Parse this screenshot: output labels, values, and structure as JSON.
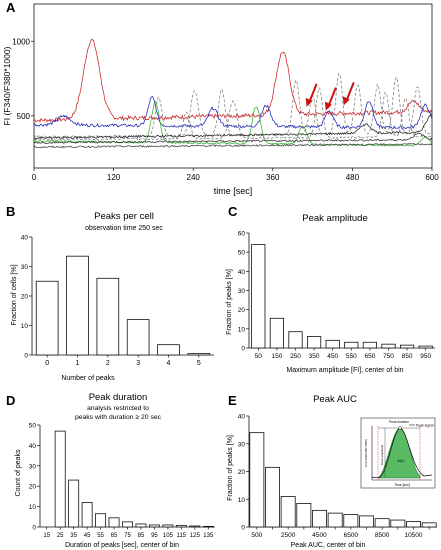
{
  "chart_data": [
    {
      "panel": "A",
      "type": "line",
      "xlabel": "time [sec]",
      "ylabel": "FI (F340/F380*1000)",
      "xlim": [
        0,
        600
      ],
      "ylim": [
        150,
        1250
      ],
      "xticks": [
        0,
        120,
        240,
        360,
        480,
        600
      ],
      "yticks": [
        500,
        1000
      ],
      "grid": false,
      "annotations": [
        {
          "type": "arrow",
          "color": "#cc1111",
          "x": 414,
          "y": 580
        },
        {
          "type": "arrow",
          "color": "#cc1111",
          "x": 443,
          "y": 555
        },
        {
          "type": "arrow",
          "color": "#cc1111",
          "x": 470,
          "y": 590
        }
      ],
      "series": [
        {
          "color": "#cc1f1f",
          "baseline": 500,
          "noise": 14,
          "drift": [
            [
              0,
              470
            ],
            [
              300,
              500
            ],
            [
              600,
              530
            ]
          ],
          "peaks": [
            [
              87,
              530,
              12
            ],
            [
              375,
              420,
              10
            ],
            [
              572,
              70,
              8
            ]
          ]
        },
        {
          "color": "#1a23b8",
          "baseline": 420,
          "noise": 10,
          "drift": [
            [
              0,
              440
            ],
            [
              600,
              420
            ]
          ],
          "peaks": [
            [
              45,
              60,
              10
            ],
            [
              178,
              190,
              6
            ],
            [
              270,
              120,
              7
            ],
            [
              350,
              140,
              7
            ],
            [
              445,
              110,
              6
            ],
            [
              505,
              180,
              6
            ],
            [
              590,
              150,
              7
            ]
          ]
        },
        {
          "color": "#33b233",
          "baseline": 330,
          "noise": 6,
          "drift": [
            [
              0,
              330
            ],
            [
              600,
              300
            ]
          ],
          "peaks": [
            [
              183,
              270,
              6
            ],
            [
              335,
              250,
              6
            ],
            [
              405,
              120,
              6
            ],
            [
              590,
              60,
              6
            ]
          ]
        },
        {
          "color": "#7a7a7a",
          "baseline": 360,
          "noise": 6,
          "dash": "3,2",
          "drift": [
            [
              0,
              360
            ],
            [
              600,
              380
            ]
          ],
          "peaks": [
            [
              188,
              260,
              5
            ],
            [
              242,
              300,
              6
            ],
            [
              283,
              310,
              5
            ],
            [
              395,
              370,
              5
            ],
            [
              420,
              260,
              5
            ],
            [
              460,
              410,
              5
            ],
            [
              488,
              330,
              5
            ],
            [
              518,
              330,
              5
            ],
            [
              546,
              380,
              5
            ],
            [
              578,
              320,
              5
            ]
          ]
        },
        {
          "color": "#7a7a7a",
          "baseline": 340,
          "noise": 6,
          "dash": "3,2",
          "drift": [
            [
              0,
              340
            ],
            [
              600,
              360
            ]
          ],
          "peaks": [
            [
              230,
              180,
              5
            ],
            [
              300,
              250,
              6
            ],
            [
              430,
              330,
              5
            ],
            [
              530,
              300,
              5
            ],
            [
              560,
              260,
              5
            ]
          ]
        },
        {
          "color": "#222222",
          "baseline": 350,
          "noise": 7,
          "drift": [
            [
              0,
              350
            ],
            [
              600,
              390
            ]
          ],
          "peaks": [
            [
              500,
              60,
              8
            ],
            [
              600,
              120,
              8
            ]
          ]
        },
        {
          "color": "#333333",
          "baseline": 315,
          "noise": 6,
          "drift": [
            [
              0,
              320
            ],
            [
              600,
              340
            ]
          ],
          "peaks": [
            [
              580,
              40,
              8
            ]
          ]
        },
        {
          "color": "#444444",
          "baseline": 290,
          "noise": 6,
          "drift": [
            [
              0,
              290
            ],
            [
              600,
              310
            ]
          ],
          "peaks": []
        }
      ]
    },
    {
      "panel": "B",
      "type": "bar",
      "title": "Peaks per cell",
      "subtitle": "observation time 250 sec",
      "xlabel": "Number of peaks",
      "ylabel": "Fraction of cells [%]",
      "categories": [
        "0",
        "1",
        "2",
        "3",
        "4",
        "5"
      ],
      "values": [
        25,
        33.5,
        26,
        12,
        3.5,
        0.5
      ],
      "ylim": [
        0,
        40
      ],
      "yticks": [
        0,
        10,
        20,
        30,
        40
      ]
    },
    {
      "panel": "C",
      "type": "bar",
      "title": "Peak amplitude",
      "xlabel": "Maximum amplitude [FI], center of bin",
      "ylabel": "Fraction of peaks [%]",
      "categories": [
        "50",
        "150",
        "250",
        "350",
        "450",
        "550",
        "650",
        "750",
        "850",
        "950"
      ],
      "values": [
        54,
        15.5,
        8.5,
        6,
        4,
        3,
        3,
        2,
        1.5,
        1
      ],
      "ylim": [
        0,
        60
      ],
      "yticks": [
        0,
        10,
        20,
        30,
        40,
        50,
        60
      ]
    },
    {
      "panel": "D",
      "type": "bar",
      "title": "Peak duration",
      "subtitle": "analysis restricted to",
      "subtitle2": "peaks with duration ≥ 20 sec",
      "xlabel": "Duration of peaks [sec], center of bin",
      "ylabel": "Count of peaks",
      "categories": [
        "15",
        "25",
        "35",
        "45",
        "55",
        "65",
        "75",
        "85",
        "95",
        "105",
        "115",
        "125",
        "135"
      ],
      "values": [
        0,
        47,
        23,
        12,
        6.5,
        4.5,
        2.5,
        1.5,
        1,
        1,
        0.8,
        0.5,
        0.3
      ],
      "ylim": [
        0,
        50
      ],
      "yticks": [
        0,
        10,
        20,
        30,
        40,
        50
      ]
    },
    {
      "panel": "E",
      "type": "bar",
      "title": "Peak AUC",
      "xlabel": "Peak AUC, center of bin",
      "ylabel": "Fraction of peaks [%]",
      "categories": [
        "500",
        "1500",
        "2500",
        "3500",
        "4500",
        "5500",
        "6500",
        "7500",
        "8500",
        "9500",
        "10500",
        "11500"
      ],
      "xtick_labels": [
        "500",
        "",
        "2500",
        "",
        "4500",
        "",
        "6500",
        "",
        "8500",
        "",
        "10500",
        ""
      ],
      "values": [
        34,
        21.5,
        11,
        8.5,
        6,
        5,
        4.5,
        4,
        3,
        2.5,
        2,
        1.5
      ],
      "ylim": [
        0,
        40
      ],
      "yticks": [
        0,
        10,
        20,
        30,
        40
      ],
      "inset": {
        "legend": "Peak signal",
        "label_top": "Peak duration",
        "label_amp": "Peak amplitude",
        "label_auc": "AUC",
        "xlabel": "Time [sec]",
        "ylabel": "FI (F340/F380*1000)",
        "fill": "#3cb04a"
      }
    }
  ],
  "colors": {
    "axis": "#111111",
    "bar_fill": "#ffffff",
    "bar_stroke": "#111111",
    "arrow": "#cc1111"
  }
}
